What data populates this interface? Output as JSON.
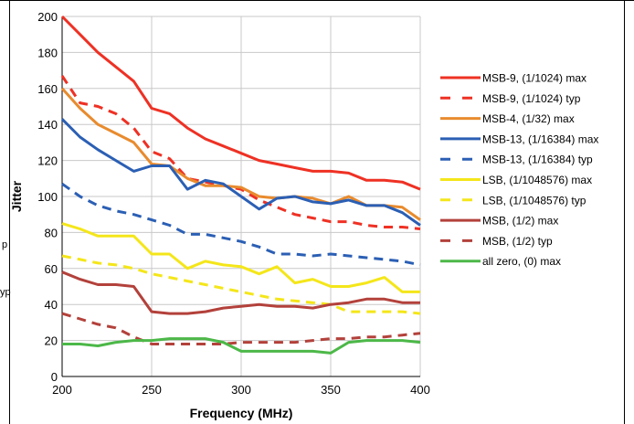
{
  "page": {
    "left_fragments": [
      "p",
      "yp"
    ]
  },
  "chart_data": {
    "type": "line",
    "title": "",
    "xlabel": "Frequency (MHz)",
    "ylabel": "Jitter",
    "xlim": [
      200,
      400
    ],
    "ylim": [
      0,
      200
    ],
    "x_ticks": [
      200,
      250,
      300,
      350,
      400
    ],
    "y_ticks": [
      0,
      20,
      40,
      60,
      80,
      100,
      120,
      140,
      160,
      180,
      200
    ],
    "grid": true,
    "legend_position": "right",
    "series": [
      {
        "name": "MSB-9, (1/1024) max",
        "color": "#ee3124",
        "dash": false,
        "x": [
          200,
          210,
          220,
          230,
          240,
          250,
          260,
          270,
          280,
          290,
          300,
          310,
          320,
          330,
          340,
          350,
          360,
          370,
          380,
          390,
          400
        ],
        "y": [
          200,
          190,
          180,
          172,
          164,
          149,
          146,
          138,
          132,
          128,
          124,
          120,
          118,
          116,
          114,
          114,
          113,
          109,
          109,
          108,
          104
        ]
      },
      {
        "name": "MSB-9, (1/1024) typ",
        "color": "#ee3124",
        "dash": true,
        "x": [
          200,
          210,
          220,
          230,
          240,
          250,
          260,
          270,
          280,
          290,
          300,
          310,
          320,
          330,
          340,
          350,
          360,
          370,
          380,
          390,
          400
        ],
        "y": [
          167,
          152,
          150,
          146,
          138,
          125,
          121,
          110,
          108,
          106,
          104,
          98,
          94,
          90,
          88,
          86,
          86,
          84,
          83,
          83,
          82
        ]
      },
      {
        "name": "MSB-4, (1/32) max",
        "color": "#e88b2e",
        "dash": false,
        "x": [
          200,
          210,
          220,
          230,
          240,
          250,
          260,
          270,
          280,
          290,
          300,
          310,
          320,
          330,
          340,
          350,
          360,
          370,
          380,
          390,
          400
        ],
        "y": [
          160,
          149,
          140,
          135,
          130,
          118,
          117,
          110,
          106,
          106,
          105,
          100,
          99,
          100,
          99,
          96,
          100,
          95,
          95,
          94,
          87
        ]
      },
      {
        "name": "MSB-13, (1/16384) max",
        "color": "#2b5fb4",
        "dash": false,
        "x": [
          200,
          210,
          220,
          230,
          240,
          250,
          260,
          270,
          280,
          290,
          300,
          310,
          320,
          330,
          340,
          350,
          360,
          370,
          380,
          390,
          400
        ],
        "y": [
          143,
          133,
          126,
          120,
          114,
          117,
          117,
          104,
          109,
          107,
          100,
          93,
          99,
          100,
          97,
          96,
          98,
          95,
          95,
          91,
          84
        ]
      },
      {
        "name": "MSB-13, (1/16384) typ",
        "color": "#2b5fb4",
        "dash": true,
        "x": [
          200,
          210,
          220,
          230,
          240,
          250,
          260,
          270,
          280,
          290,
          300,
          310,
          320,
          330,
          340,
          350,
          360,
          370,
          380,
          390,
          400
        ],
        "y": [
          107,
          100,
          95,
          92,
          90,
          87,
          84,
          79,
          79,
          77,
          75,
          72,
          68,
          68,
          67,
          68,
          67,
          66,
          65,
          64,
          62
        ]
      },
      {
        "name": "LSB, (1/1048576) max",
        "color": "#f4e61a",
        "dash": false,
        "x": [
          200,
          210,
          220,
          230,
          240,
          250,
          260,
          270,
          280,
          290,
          300,
          310,
          320,
          330,
          340,
          350,
          360,
          370,
          380,
          390,
          400
        ],
        "y": [
          85,
          82,
          78,
          78,
          78,
          68,
          68,
          60,
          64,
          62,
          61,
          57,
          61,
          52,
          54,
          50,
          50,
          52,
          55,
          47,
          47
        ]
      },
      {
        "name": "LSB, (1/1048576) typ",
        "color": "#f4e61a",
        "dash": true,
        "x": [
          200,
          210,
          220,
          230,
          240,
          250,
          260,
          270,
          280,
          290,
          300,
          310,
          320,
          330,
          340,
          350,
          360,
          370,
          380,
          390,
          400
        ],
        "y": [
          67,
          65,
          63,
          62,
          60,
          57,
          55,
          53,
          51,
          49,
          47,
          45,
          43,
          42,
          41,
          40,
          36,
          36,
          36,
          36,
          35
        ]
      },
      {
        "name": "MSB, (1/2) max",
        "color": "#b3413b",
        "dash": false,
        "x": [
          200,
          210,
          220,
          230,
          240,
          250,
          260,
          270,
          280,
          290,
          300,
          310,
          320,
          330,
          340,
          350,
          360,
          370,
          380,
          390,
          400
        ],
        "y": [
          58,
          54,
          51,
          51,
          50,
          36,
          35,
          35,
          36,
          38,
          39,
          40,
          39,
          39,
          38,
          40,
          41,
          43,
          43,
          41,
          41
        ]
      },
      {
        "name": "MSB, (1/2) typ",
        "color": "#b3413b",
        "dash": true,
        "x": [
          200,
          210,
          220,
          230,
          240,
          250,
          260,
          270,
          280,
          290,
          300,
          310,
          320,
          330,
          340,
          350,
          360,
          370,
          380,
          390,
          400
        ],
        "y": [
          35,
          32,
          29,
          27,
          22,
          18,
          18,
          18,
          18,
          18,
          19,
          19,
          19,
          19,
          20,
          21,
          21,
          22,
          22,
          23,
          24
        ]
      },
      {
        "name": "all zero, (0) max",
        "color": "#4cb848",
        "dash": false,
        "x": [
          200,
          210,
          220,
          230,
          240,
          250,
          260,
          270,
          280,
          290,
          300,
          310,
          320,
          330,
          340,
          350,
          360,
          370,
          380,
          390,
          400
        ],
        "y": [
          18,
          18,
          17,
          19,
          20,
          20,
          21,
          21,
          21,
          19,
          14,
          14,
          14,
          14,
          14,
          13,
          19,
          20,
          20,
          20,
          19
        ]
      }
    ]
  }
}
